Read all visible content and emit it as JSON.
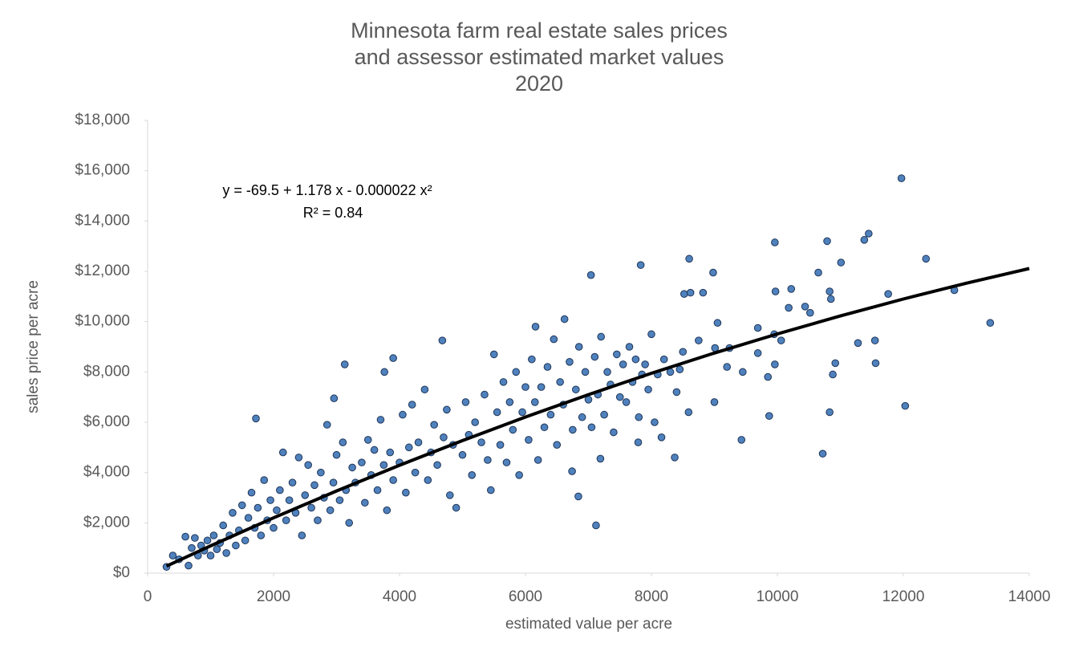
{
  "chart_data": {
    "type": "scatter",
    "title": [
      "Minnesota farm real estate sales prices",
      "and assessor estimated market values",
      "2020"
    ],
    "xlabel": "estimated value per acre",
    "ylabel": "sales price per acre",
    "annotations": [
      "y = -69.5 + 1.178 x - 0.000022 x²",
      "R² = 0.84"
    ],
    "color": "#4f81bd",
    "x": [
      300,
      400,
      500,
      600,
      650,
      700,
      750,
      800,
      850,
      900,
      950,
      1000,
      1050,
      1100,
      1150,
      1200,
      1250,
      1300,
      1350,
      1400,
      1450,
      1500,
      1550,
      1600,
      1650,
      1700,
      1750,
      1800,
      1850,
      1900,
      1950,
      2000,
      2050,
      2100,
      2150,
      2200,
      2250,
      2300,
      2350,
      2400,
      2450,
      2500,
      2550,
      2600,
      2650,
      2700,
      2750,
      2800,
      2850,
      2900,
      2950,
      3000,
      3050,
      3100,
      3150,
      3200,
      3250,
      3300,
      3400,
      3450,
      3500,
      3550,
      3600,
      3650,
      3700,
      3750,
      3800,
      3850,
      3900,
      4000,
      4050,
      4100,
      4150,
      4200,
      4250,
      4300,
      4400,
      4450,
      4500,
      4550,
      4600,
      4700,
      4750,
      4800,
      4850,
      4900,
      5000,
      5050,
      5100,
      5150,
      5200,
      5300,
      5350,
      5400,
      5450,
      5500,
      5550,
      5600,
      5650,
      5700,
      5750,
      5800,
      5850,
      5900,
      5950,
      6000,
      6050,
      6100,
      6150,
      6200,
      6250,
      6300,
      6350,
      6400,
      6450,
      6500,
      6550,
      6600,
      6700,
      6750,
      6800,
      6850,
      6900,
      6950,
      7000,
      7050,
      7100,
      7150,
      7200,
      7250,
      7300,
      7350,
      7400,
      7450,
      7500,
      7550,
      7600,
      7650,
      7700,
      7750,
      7800,
      7850,
      7900,
      7950,
      8000,
      8050,
      8100,
      8200,
      8300,
      8400,
      8500,
      1720,
      3130,
      3760,
      3900,
      2960,
      4680,
      7040,
      7830,
      8600,
      8520,
      8620,
      8820,
      8980,
      6620,
      6160,
      7120,
      6840,
      8370,
      9430,
      9870,
      10720,
      10830,
      12030,
      11970,
      11450,
      11380,
      10790,
      9960,
      12360,
      11010,
      12810,
      13380,
      11760,
      10830,
      10850,
      10440,
      10650,
      9970,
      10220,
      10180,
      10520,
      11280,
      11550,
      11560,
      10920,
      10880,
      9050,
      9010,
      9240,
      9950,
      10060,
      9690,
      9690,
      9850,
      9960,
      9200,
      9450,
      9000,
      8590,
      8750,
      7790,
      8160,
      7190,
      6740,
      8450
    ],
    "values": [
      250,
      700,
      550,
      1450,
      300,
      1000,
      1400,
      700,
      1100,
      900,
      1300,
      700,
      1500,
      950,
      1200,
      1900,
      800,
      1500,
      2400,
      1100,
      1700,
      2700,
      1300,
      2200,
      3200,
      1800,
      2600,
      1500,
      3700,
      2100,
      2900,
      1800,
      2500,
      3300,
      4800,
      2100,
      2900,
      3600,
      2400,
      4600,
      1500,
      3100,
      4300,
      2600,
      3500,
      2100,
      4000,
      3000,
      5900,
      2500,
      3600,
      4700,
      2900,
      5200,
      3300,
      2000,
      4200,
      3600,
      4400,
      2800,
      5300,
      3900,
      4900,
      3300,
      6100,
      4300,
      2500,
      4800,
      3700,
      4400,
      6300,
      3200,
      5000,
      6700,
      4000,
      5200,
      7300,
      3700,
      4800,
      5900,
      4300,
      5400,
      6500,
      3100,
      5100,
      2600,
      4700,
      6800,
      5500,
      3900,
      6000,
      5200,
      7100,
      4500,
      3300,
      8700,
      6400,
      5100,
      7600,
      4400,
      6800,
      5700,
      8000,
      3900,
      6400,
      7400,
      5300,
      8500,
      6800,
      4500,
      7400,
      5800,
      8200,
      6300,
      9300,
      5100,
      7600,
      6700,
      8400,
      5700,
      7300,
      9000,
      6200,
      8000,
      6900,
      5800,
      8600,
      7100,
      9400,
      6300,
      8000,
      7500,
      5600,
      8700,
      7000,
      8300,
      6800,
      9000,
      7600,
      8500,
      6200,
      7900,
      8300,
      7300,
      9500,
      6000,
      7900,
      8500,
      8000,
      7200,
      8800,
      6150,
      8300,
      8000,
      8550,
      6950,
      9250,
      11850,
      12250,
      12500,
      11100,
      11150,
      11150,
      11950,
      10100,
      9800,
      1900,
      3050,
      4600,
      5300,
      6250,
      4750,
      6400,
      6650,
      15700,
      13500,
      13250,
      13200,
      13150,
      12500,
      12350,
      11250,
      9950,
      11100,
      11200,
      10900,
      10600,
      11950,
      11200,
      11300,
      10550,
      10350,
      9150,
      9250,
      8350,
      8350,
      7900,
      9950,
      8950,
      8950,
      9500,
      9250,
      9750,
      8750,
      7800,
      8300,
      8200,
      8000,
      6800,
      6400,
      9250,
      5200,
      5400,
      4550,
      4050,
      8100
    ],
    "trendline": {
      "color": "#000000",
      "x": [
        300,
        1000,
        2000,
        3000,
        4000,
        5000,
        6000,
        7000,
        8000,
        9000,
        10000,
        11000,
        12000,
        13000,
        14000
      ],
      "values": [
        282,
        1086.5,
        2198.5,
        3266.5,
        4290.5,
        5270.5,
        6206.5,
        7098.5,
        7946.5,
        8750.5,
        9510.5,
        10226.5,
        10898.5,
        11526.5,
        12110.5
      ]
    },
    "xlim": [
      0,
      14000
    ],
    "xticks": [
      0,
      2000,
      4000,
      6000,
      8000,
      10000,
      12000,
      14000
    ],
    "ylim": [
      0,
      18000
    ],
    "yticks": [
      {
        "value": 0,
        "label": "$0"
      },
      {
        "value": 2000,
        "label": "$2,000"
      },
      {
        "value": 4000,
        "label": "$4,000"
      },
      {
        "value": 6000,
        "label": "$6,000"
      },
      {
        "value": 8000,
        "label": "$8,000"
      },
      {
        "value": 10000,
        "label": "$10,000"
      },
      {
        "value": 12000,
        "label": "$12,000"
      },
      {
        "value": 14000,
        "label": "$14,000"
      },
      {
        "value": 16000,
        "label": "$16,000"
      },
      {
        "value": 18000,
        "label": "$18,000"
      }
    ],
    "grid": false
  }
}
